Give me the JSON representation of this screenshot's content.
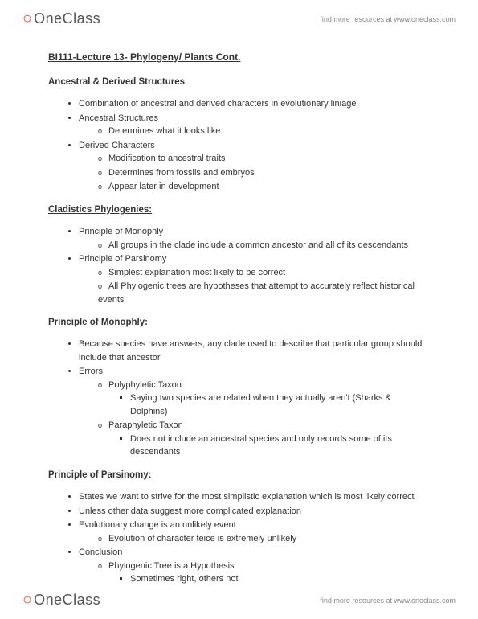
{
  "brand": {
    "icon_glyph": "○",
    "name": "OneClass",
    "tagline": "find more resources at www.oneclass.com"
  },
  "doc": {
    "title": "BI111-Lecture 13- Phylogeny/ Plants Cont.",
    "sections": [
      {
        "heading": "Ancestral & Derived Structures",
        "underline": false,
        "items": [
          {
            "text": "Combination of ancestral and derived characters in evolutionary liniage"
          },
          {
            "text": "Ancestral Structures",
            "sub": [
              {
                "text": "Determines what it looks like"
              }
            ]
          },
          {
            "text": "Derived Characters",
            "sub": [
              {
                "text": "Modification to ancestral traits"
              },
              {
                "text": "Determines from fossils and embryos"
              },
              {
                "text": "Appear later in development"
              }
            ]
          }
        ]
      },
      {
        "heading": "Cladistics Phylogenies:",
        "underline": true,
        "items": [
          {
            "text": "Principle of Monophly",
            "sub": [
              {
                "text": "All groups in the clade include a common ancestor and all of its descendants"
              }
            ]
          },
          {
            "text": "Principle of Parsinomy",
            "sub": [
              {
                "text": "Simplest explanation most likely to be correct"
              },
              {
                "text": "All Phylogenic trees are hypotheses that attempt to accurately reflect historical events"
              }
            ]
          }
        ]
      },
      {
        "heading": "Principle of Monophly:",
        "underline": false,
        "items": [
          {
            "text": "Because species have answers, any clade used to describe that particular group should include that ancestor"
          },
          {
            "text": "Errors",
            "sub": [
              {
                "text": "Polyphyletic Taxon",
                "sub": [
                  {
                    "text": "Saying two species are related when they actually aren't (Sharks & Dolphins)"
                  }
                ]
              },
              {
                "text": "Paraphyletic Taxon",
                "sub": [
                  {
                    "text": "Does not include an ancestral species and only records some of its descendants"
                  }
                ]
              }
            ]
          }
        ]
      },
      {
        "heading": "Principle of Parsinomy:",
        "underline": false,
        "items": [
          {
            "text": "States we want to strive for the most simplistic explanation which is most likely correct"
          },
          {
            "text": "Unless other data suggest more complicated explanation"
          },
          {
            "text": "Evolutionary change is an unlikely event",
            "sub": [
              {
                "text": "Evolution of character teice is extremely unlikely"
              }
            ]
          },
          {
            "text": "Conclusion",
            "sub": [
              {
                "text": "Phylogenic Tree is a Hypothesis",
                "sub": [
                  {
                    "text": "Sometimes right, others not"
                  }
                ]
              }
            ]
          }
        ]
      }
    ]
  }
}
